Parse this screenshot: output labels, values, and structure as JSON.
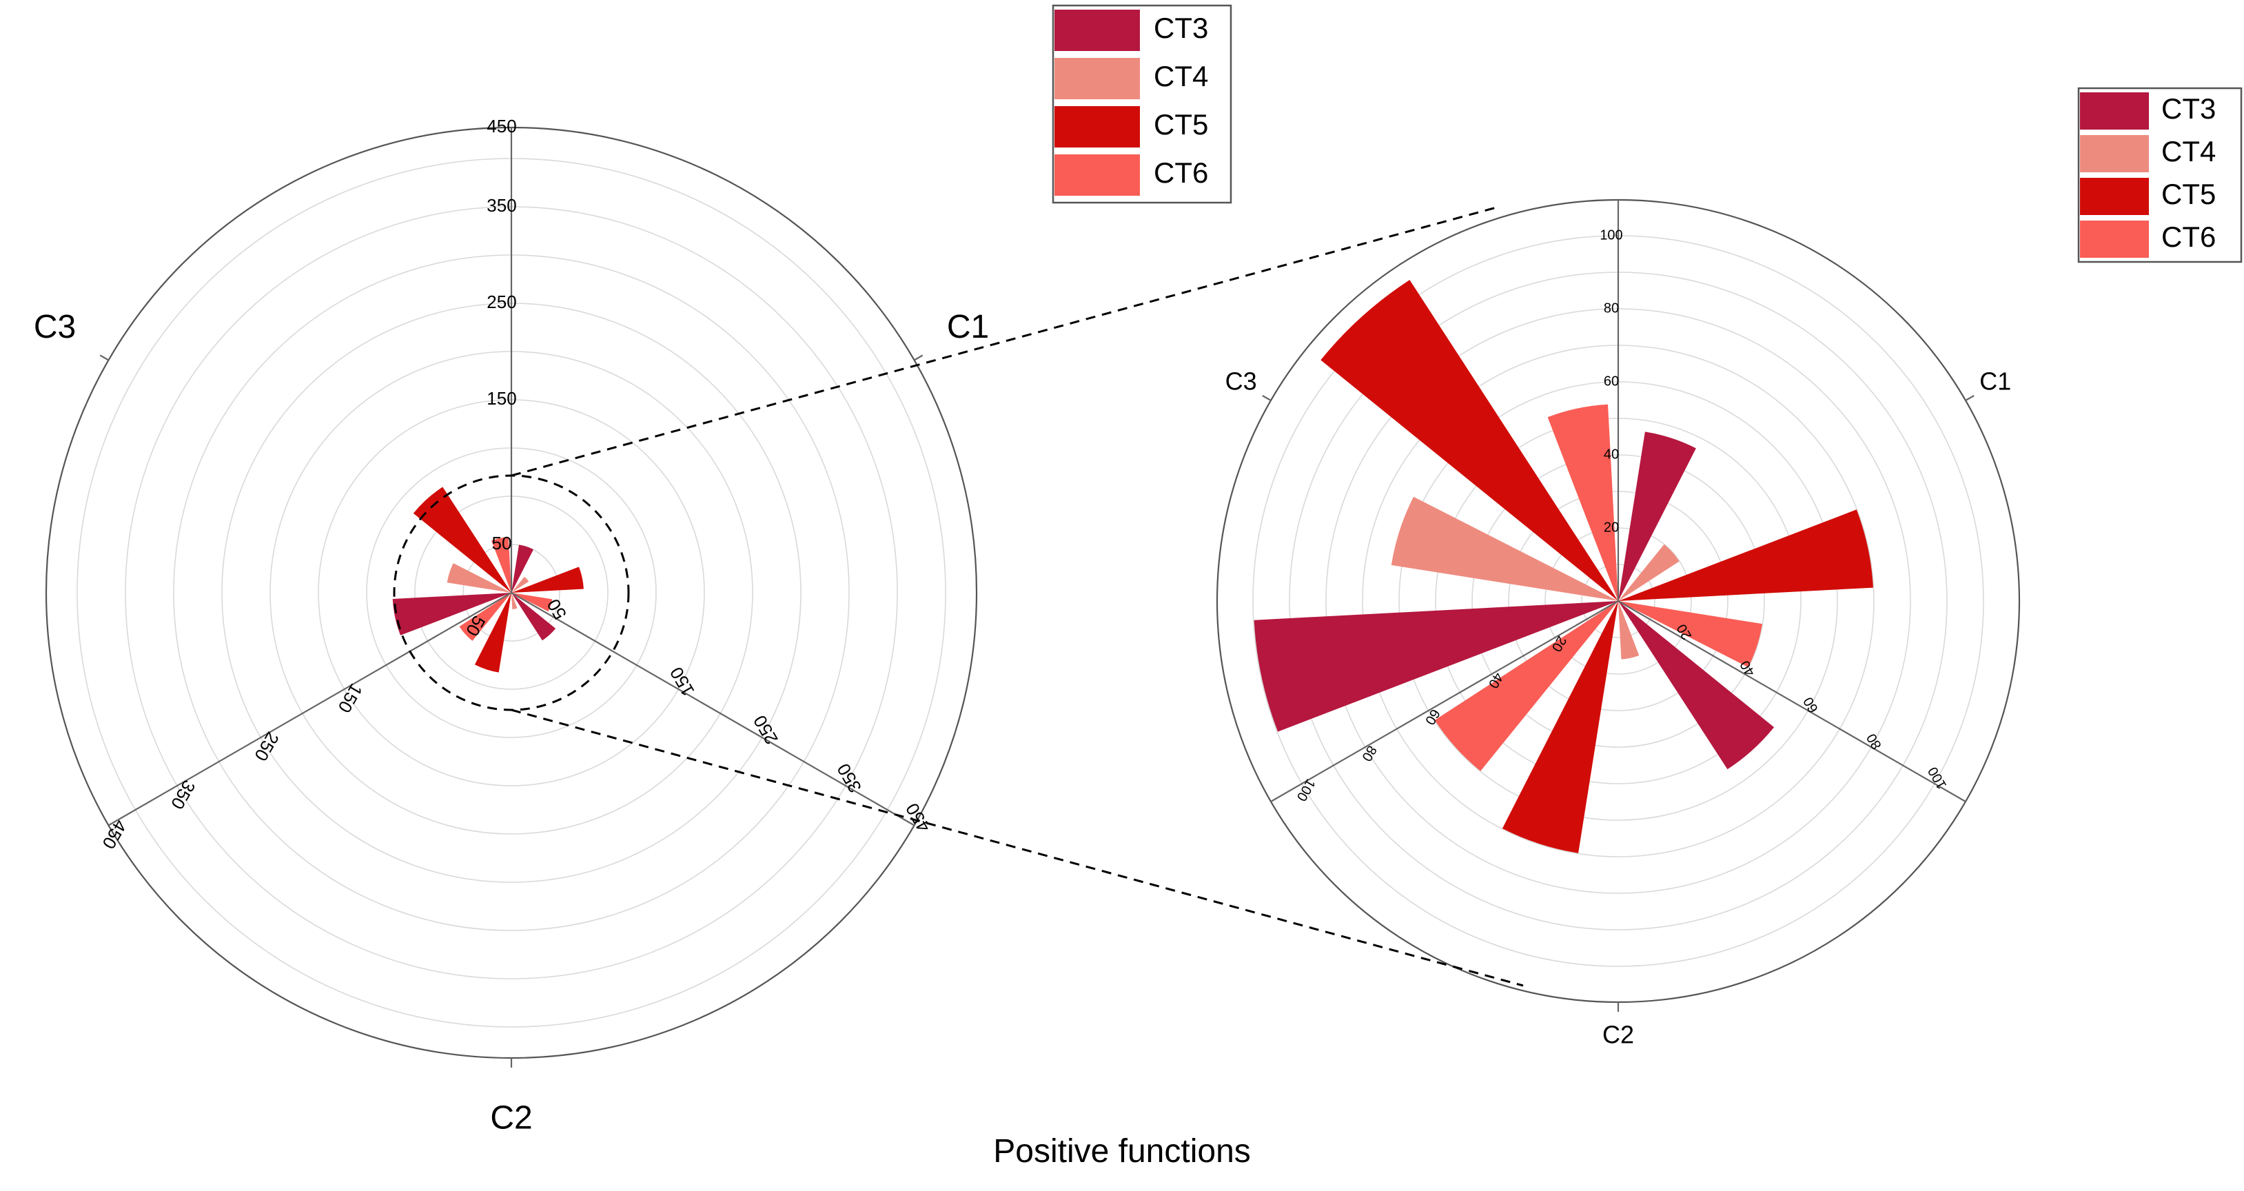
{
  "caption": "Positive functions",
  "legend": [
    {
      "name": "CT3",
      "color": "#b5173f"
    },
    {
      "name": "CT4",
      "color": "#ee8b7f"
    },
    {
      "name": "CT5",
      "color": "#d10c08"
    },
    {
      "name": "CT6",
      "color": "#f95d55"
    }
  ],
  "chart_data": [
    {
      "type": "polar-bar",
      "title": "",
      "axes": [
        {
          "name": "C1",
          "direction_deg": 60
        },
        {
          "name": "C2",
          "direction_deg": 180
        },
        {
          "name": "C3",
          "direction_deg": 300
        }
      ],
      "rlim": [
        0,
        450
      ],
      "tick_labels": [
        "50",
        "150",
        "250",
        "350",
        "450"
      ],
      "legend_position": "top-center",
      "series": [
        {
          "name": "CT3",
          "values": [
            {
              "angle_deg": 18,
              "r": 47
            },
            {
              "angle_deg": 138,
              "r": 55
            },
            {
              "angle_deg": 258,
              "r": 115
            }
          ]
        },
        {
          "name": "CT4",
          "values": [
            {
              "angle_deg": 48,
              "r": 20
            },
            {
              "angle_deg": 168,
              "r": 16
            },
            {
              "angle_deg": 288,
              "r": 63
            }
          ]
        },
        {
          "name": "CT5",
          "values": [
            {
              "angle_deg": 78,
              "r": 70
            },
            {
              "angle_deg": 198,
              "r": 78
            },
            {
              "angle_deg": 318,
              "r": 122
            }
          ]
        },
        {
          "name": "CT6",
          "values": [
            {
              "angle_deg": 108,
              "r": 40
            },
            {
              "angle_deg": 228,
              "r": 60
            },
            {
              "angle_deg": 348,
              "r": 54
            }
          ]
        }
      ]
    },
    {
      "type": "polar-bar",
      "title": "",
      "axes": [
        {
          "name": "C1",
          "direction_deg": 60
        },
        {
          "name": "C2",
          "direction_deg": 180
        },
        {
          "name": "C3",
          "direction_deg": 300
        }
      ],
      "rlim": [
        0,
        110
      ],
      "tick_labels": [
        "20",
        "40",
        "60",
        "80",
        "100"
      ],
      "legend_position": "top-right",
      "series": [
        {
          "name": "CT3",
          "values": [
            {
              "angle_deg": 18,
              "r": 47
            },
            {
              "angle_deg": 138,
              "r": 55
            },
            {
              "angle_deg": 258,
              "r": 100
            }
          ]
        },
        {
          "name": "CT4",
          "values": [
            {
              "angle_deg": 48,
              "r": 20
            },
            {
              "angle_deg": 168,
              "r": 16
            },
            {
              "angle_deg": 288,
              "r": 63
            }
          ]
        },
        {
          "name": "CT5",
          "values": [
            {
              "angle_deg": 78,
              "r": 70
            },
            {
              "angle_deg": 198,
              "r": 70
            },
            {
              "angle_deg": 318,
              "r": 105
            }
          ]
        },
        {
          "name": "CT6",
          "values": [
            {
              "angle_deg": 108,
              "r": 40
            },
            {
              "angle_deg": 228,
              "r": 60
            },
            {
              "angle_deg": 348,
              "r": 54
            }
          ]
        }
      ]
    }
  ]
}
